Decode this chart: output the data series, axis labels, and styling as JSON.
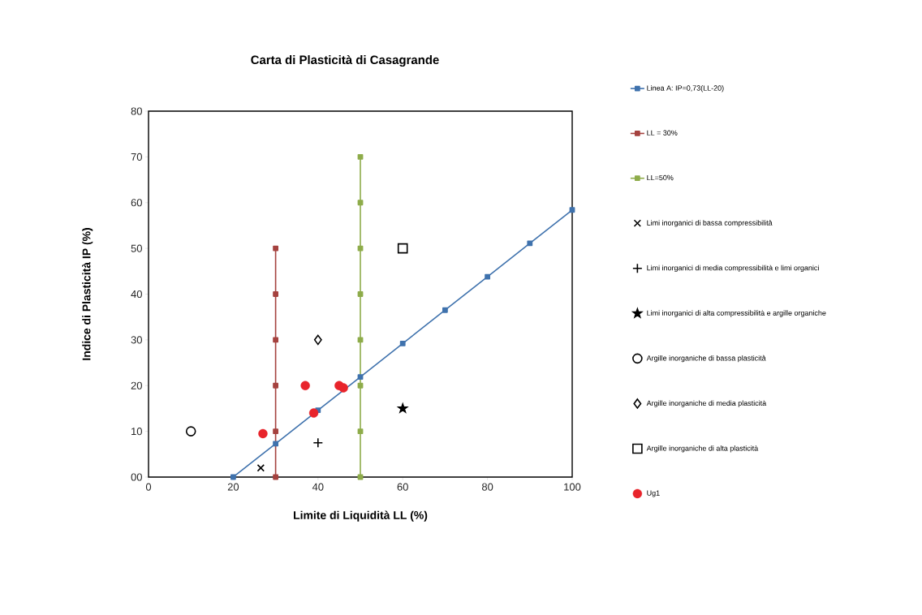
{
  "chart_data": {
    "type": "scatter",
    "title": "Carta di Plasticità di Casagrande",
    "xlabel": "Limite di Liquidità  LL  (%)",
    "ylabel": "Indice di Plasticità IP (%)",
    "xlim": [
      0,
      100
    ],
    "ylim": [
      0,
      80
    ],
    "xticks": [
      0,
      20,
      40,
      60,
      80,
      100
    ],
    "yticks": [
      {
        "value": 0,
        "label": "00"
      },
      10,
      20,
      30,
      40,
      50,
      60,
      70,
      80
    ],
    "grid": false,
    "legend": "right",
    "series": [
      {
        "name": "Linea A: IP=0,73(LL-20)",
        "type": "line",
        "color": "#3f72ad",
        "marker": "square",
        "x": [
          20,
          30,
          40,
          50,
          60,
          70,
          80,
          90,
          100
        ],
        "values": [
          0,
          7.3,
          14.6,
          21.9,
          29.2,
          36.5,
          43.8,
          51.1,
          58.4
        ]
      },
      {
        "name": "LL = 30%",
        "type": "line",
        "color": "#a5423f",
        "marker": "square",
        "x": [
          30,
          30,
          30,
          30,
          30,
          30
        ],
        "values": [
          0,
          10,
          20,
          30,
          40,
          50
        ]
      },
      {
        "name": "LL=50%",
        "type": "line",
        "color": "#8eac4a",
        "marker": "square",
        "x": [
          50,
          50,
          50,
          50,
          50,
          50,
          50,
          50
        ],
        "values": [
          0,
          10,
          20,
          30,
          40,
          50,
          60,
          70
        ]
      },
      {
        "name": "Limi inorganici di bassa compressibilità",
        "color": "#000000",
        "marker": "cross",
        "x": [
          26.5
        ],
        "values": [
          2
        ]
      },
      {
        "name": "Limi inorganici di media compressibilità e limi organici",
        "color": "#000000",
        "x": [
          40
        ],
        "values": [
          7.5
        ]
      },
      {
        "name": "Limi inorganici di alta compressibilità e argille organiche",
        "color": "#000000",
        "marker": "star",
        "x": [
          60
        ],
        "values": [
          15
        ]
      },
      {
        "name": "Argille inorganiche di bassa plasticità",
        "color": "#000000",
        "marker": "circle",
        "x": [
          10
        ],
        "values": [
          10
        ]
      },
      {
        "name": "Argille inorganiche di media plasticità",
        "color": "#000000",
        "marker": "diamond",
        "x": [
          40
        ],
        "values": [
          30
        ]
      },
      {
        "name": "Argille inorganiche di alta plasticità",
        "color": "#000000",
        "marker": "square",
        "x": [
          60
        ],
        "values": [
          50
        ]
      },
      {
        "name": "Ug1",
        "color": "#e8242b",
        "marker": "circle",
        "x": [
          27,
          37,
          39,
          45,
          46
        ],
        "values": [
          9.5,
          20,
          14,
          20,
          19.5
        ]
      }
    ]
  }
}
